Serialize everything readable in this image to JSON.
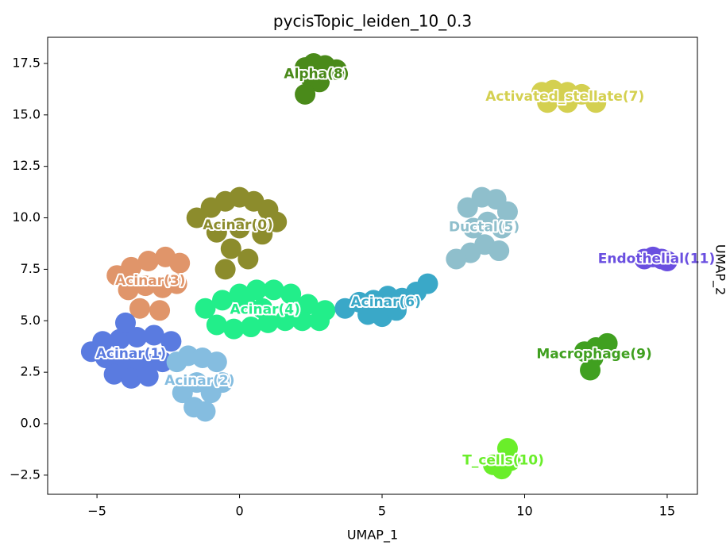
{
  "chart_data": {
    "type": "scatter",
    "title": "pycisTopic_leiden_10_0.3",
    "x_label": "UMAP_1",
    "y_label": "UMAP_2",
    "xlim": [
      -6.73,
      16.06
    ],
    "ylim": [
      -3.43,
      18.77
    ],
    "xticks": [
      {
        "value": -5,
        "label": "−5"
      },
      0,
      5,
      10,
      15
    ],
    "yticks": [
      {
        "value": -2.5,
        "label": "−2.5"
      },
      {
        "value": 0,
        "label": "0.0"
      },
      2.5,
      {
        "value": 5,
        "label": "5.0"
      },
      7.5,
      {
        "value": 10,
        "label": "10.0"
      },
      12.5,
      {
        "value": 15,
        "label": "15.0"
      },
      17.5
    ],
    "series": [
      {
        "name": "Acinar(0)",
        "color": "#8c8c2c",
        "x": [
          -1.5,
          -1,
          -0.5,
          0,
          0.5,
          1,
          1.3,
          -0.8,
          0,
          0.8,
          -0.3,
          0.3,
          -0.5
        ],
        "y": [
          10,
          10.5,
          10.8,
          11,
          10.8,
          10.4,
          9.8,
          9.3,
          9.5,
          9.2,
          8.5,
          8.0,
          7.5
        ]
      },
      {
        "name": "Acinar(3)",
        "color": "#e0956a",
        "x": [
          -4.3,
          -3.8,
          -3.2,
          -2.6,
          -2.1,
          -3.9,
          -3.3,
          -2.7,
          -2.2,
          -3.5,
          -2.8
        ],
        "y": [
          7.2,
          7.6,
          7.9,
          8.1,
          7.8,
          6.5,
          6.7,
          6.6,
          6.8,
          5.6,
          5.5
        ]
      },
      {
        "name": "Acinar(1)",
        "color": "#5a7be0",
        "x": [
          -5.2,
          -4.7,
          -4.2,
          -3.7,
          -3.2,
          -2.7,
          -4.8,
          -4.2,
          -3.6,
          -3.0,
          -2.4,
          -4.4,
          -3.8,
          -3.2,
          -4.0
        ],
        "y": [
          3.5,
          3.2,
          3.0,
          2.9,
          2.9,
          3.0,
          4.0,
          4.1,
          4.2,
          4.3,
          4.0,
          2.4,
          2.2,
          2.3,
          4.9
        ]
      },
      {
        "name": "Acinar(2)",
        "color": "#85bde0",
        "x": [
          -2.2,
          -1.8,
          -1.3,
          -0.8,
          -0.6,
          -1.5,
          -1.0,
          -2.0,
          -1.6,
          -1.2
        ],
        "y": [
          3.0,
          3.3,
          3.2,
          3.0,
          2.0,
          2.0,
          1.5,
          1.5,
          0.8,
          0.6
        ]
      },
      {
        "name": "Acinar(4)",
        "color": "#22ee8a",
        "x": [
          -1.2,
          -0.6,
          0,
          0.6,
          1.2,
          1.8,
          2.4,
          3.0,
          -0.8,
          -0.2,
          0.4,
          1.0,
          1.6,
          2.2,
          2.8,
          0.2,
          0.8
        ],
        "y": [
          5.6,
          6.0,
          6.3,
          6.5,
          6.5,
          6.3,
          5.8,
          5.5,
          4.8,
          4.6,
          4.7,
          4.9,
          5.0,
          5.0,
          5.0,
          5.8,
          5.6
        ]
      },
      {
        "name": "Acinar(6)",
        "color": "#3aa8c8",
        "x": [
          3.7,
          4.2,
          4.7,
          5.2,
          5.7,
          6.2,
          4.5,
          5.0,
          5.5,
          6.6
        ],
        "y": [
          5.6,
          5.9,
          6.0,
          6.2,
          6.1,
          6.4,
          5.3,
          5.2,
          5.5,
          6.8
        ]
      },
      {
        "name": "Ductal(5)",
        "color": "#8fbfcc",
        "x": [
          8.0,
          8.5,
          9.0,
          9.4,
          8.2,
          8.7,
          9.2,
          8.6,
          9.1,
          8.1,
          7.6
        ],
        "y": [
          10.5,
          11.0,
          10.9,
          10.3,
          9.5,
          9.8,
          9.5,
          8.7,
          8.4,
          8.3,
          8.0
        ]
      },
      {
        "name": "Endothelial(11)",
        "color": "#6a4fe0",
        "x": [
          14.2,
          14.5,
          14.8,
          15.0
        ],
        "y": [
          8.0,
          8.1,
          8.0,
          7.9
        ]
      },
      {
        "name": "Alpha(8)",
        "color": "#4a8a1a",
        "x": [
          2.3,
          2.6,
          3.0,
          3.4,
          2.5,
          2.8,
          2.3
        ],
        "y": [
          17.3,
          17.5,
          17.4,
          17.2,
          16.8,
          16.6,
          16.0
        ]
      },
      {
        "name": "Activated_stellate(7)",
        "color": "#d4d050",
        "x": [
          10.6,
          11.0,
          11.5,
          12.0,
          12.5,
          10.8,
          11.5
        ],
        "y": [
          16.1,
          16.2,
          16.1,
          16.0,
          15.6,
          15.6,
          15.6
        ]
      },
      {
        "name": "Macrophage(9)",
        "color": "#40a020",
        "x": [
          12.1,
          12.5,
          12.9,
          12.4,
          12.3
        ],
        "y": [
          3.5,
          3.7,
          3.9,
          3.2,
          2.6
        ]
      },
      {
        "name": "T_cells(10)",
        "color": "#6aee2a",
        "x": [
          8.9,
          9.2,
          9.5,
          9.4
        ],
        "y": [
          -2.0,
          -2.2,
          -1.8,
          -1.2
        ]
      }
    ]
  }
}
